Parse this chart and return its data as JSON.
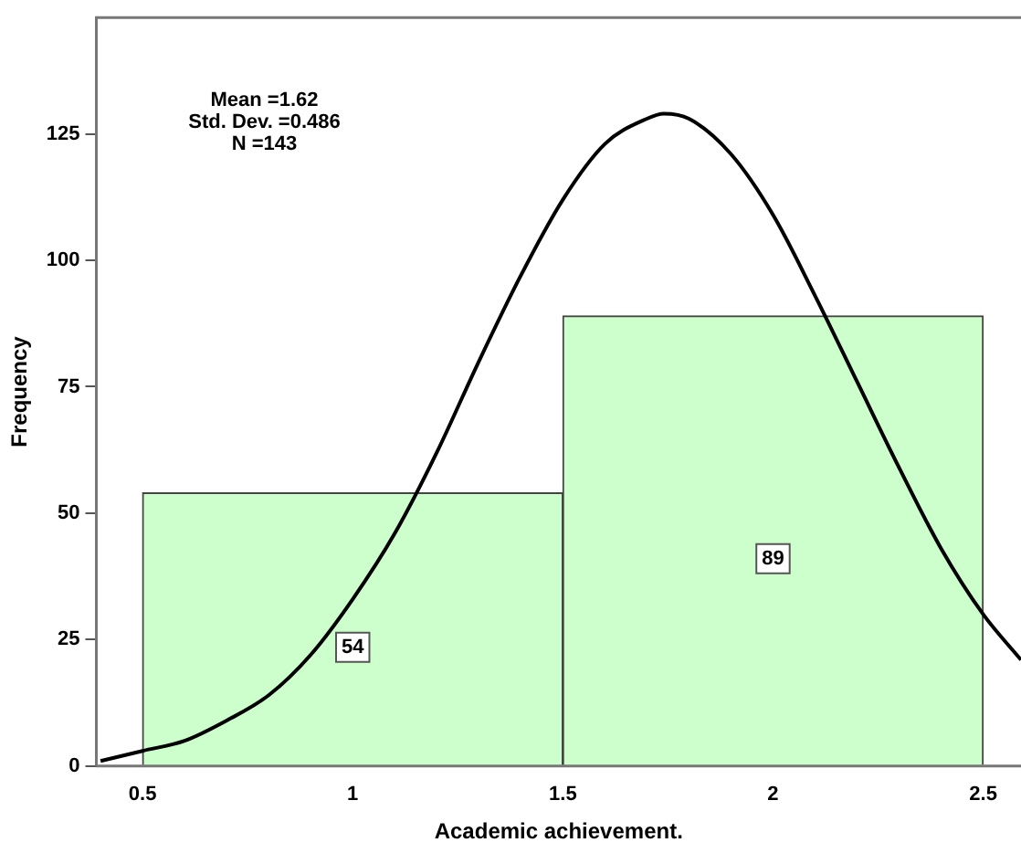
{
  "chart_data": {
    "type": "histogram",
    "xlabel": "Academic achievement.",
    "ylabel": "Frequency",
    "annotations": [
      "Mean =1.62\nStd. Dev. =0.486\nN =143"
    ],
    "bins": [
      0.5,
      1.5,
      2.5
    ],
    "values": [
      54,
      89
    ],
    "color": "#ccffcc",
    "value_labels": [
      "54",
      "89"
    ],
    "series": [
      {
        "type": "line",
        "color": "#000000",
        "x": [
          0.4,
          0.5,
          0.6,
          0.7,
          0.8,
          0.9,
          1.0,
          1.1,
          1.2,
          1.3,
          1.4,
          1.5,
          1.6,
          1.7,
          1.74,
          1.8,
          1.9,
          2.0,
          2.1,
          2.2,
          2.3,
          2.4,
          2.5,
          2.59
        ],
        "values": [
          1,
          3,
          5,
          9,
          14,
          22,
          33,
          46,
          62,
          80,
          97,
          112,
          123,
          128,
          129,
          128,
          121,
          109,
          93,
          76,
          59,
          43,
          30,
          21
        ]
      }
    ],
    "xlim": [
      0.39,
      2.59
    ],
    "xticks": [
      0.5,
      1,
      1.5,
      2,
      2.5
    ],
    "ylim": [
      0,
      148
    ],
    "yticks": [
      0,
      25,
      50,
      75,
      100,
      125
    ],
    "grid": false,
    "legend": false,
    "marker": "none"
  }
}
